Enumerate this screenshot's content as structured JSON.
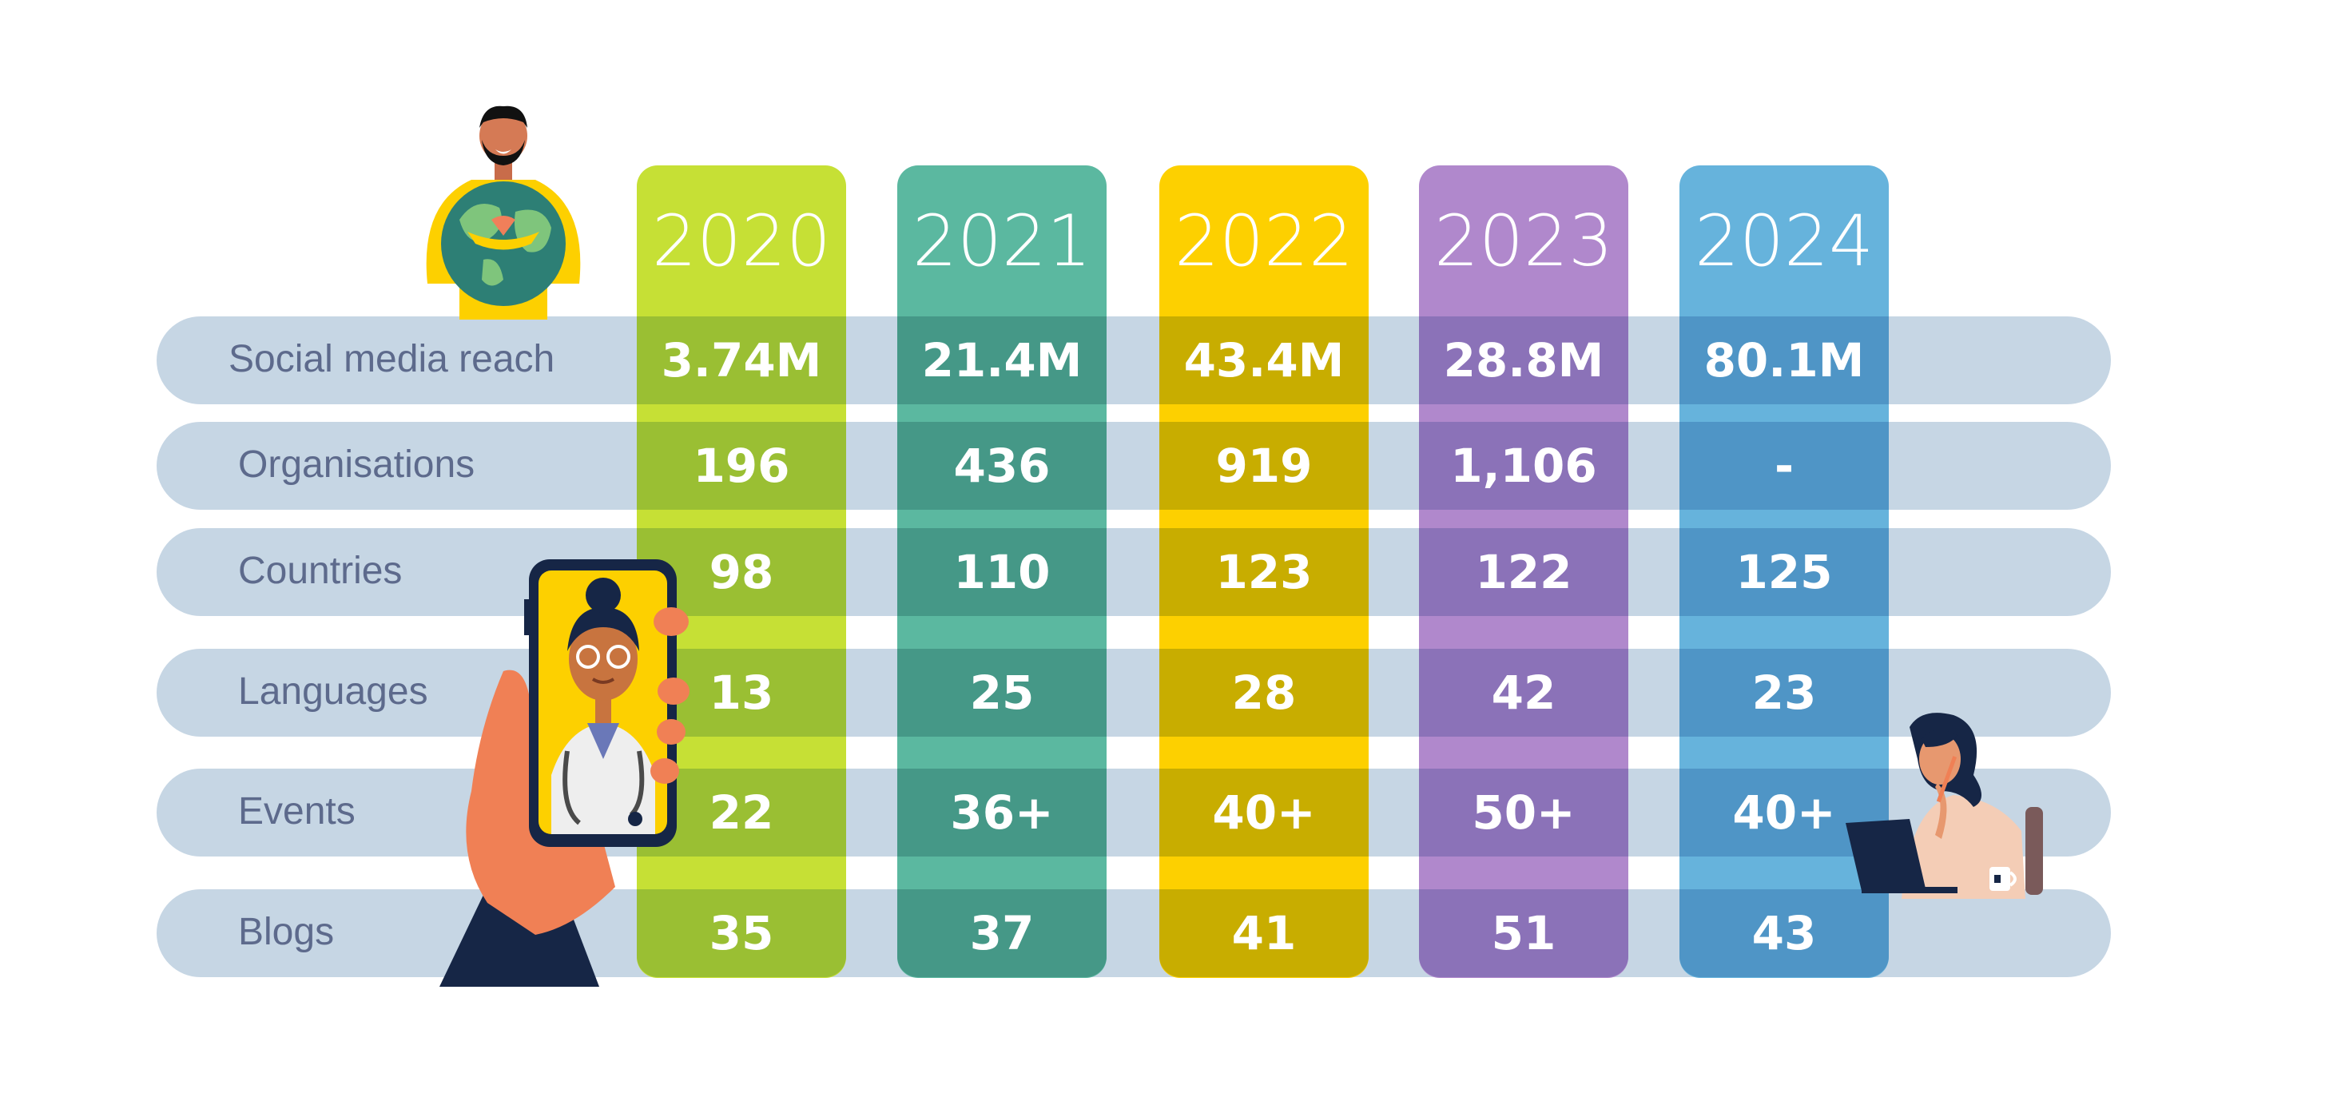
{
  "chart_data": {
    "type": "table",
    "title": "",
    "columns": [
      "2020",
      "2021",
      "2022",
      "2023",
      "2024"
    ],
    "rows": [
      {
        "label": "Social media reach",
        "values": [
          "3.74M",
          "21.4M",
          "43.4M",
          "28.8M",
          "80.1M"
        ]
      },
      {
        "label": "Organisations",
        "values": [
          "196",
          "436",
          "919",
          "1,106",
          "-"
        ]
      },
      {
        "label": "Countries",
        "values": [
          "98",
          "110",
          "123",
          "122",
          "125"
        ]
      },
      {
        "label": "Languages",
        "values": [
          "13",
          "25",
          "28",
          "42",
          "23"
        ]
      },
      {
        "label": "Events",
        "values": [
          "22",
          "36+",
          "40+",
          "50+",
          "40+"
        ]
      },
      {
        "label": "Blogs",
        "values": [
          "35",
          "37",
          "41",
          "51",
          "43"
        ]
      }
    ]
  },
  "colors": {
    "row_band": "#c6d6e4",
    "label_text": "#5d6a8c",
    "column_light": [
      "#c6e035",
      "#5bb8a0",
      "#fdd000",
      "#b088cc",
      "#66b3dc"
    ],
    "column_dark": [
      "#9abf33",
      "#459887",
      "#c8ad00",
      "#8b72b8",
      "#4f95c6"
    ]
  },
  "illustrations": [
    "man-hugging-globe-icon",
    "hand-holding-phone-doctor-icon",
    "woman-at-laptop-icon"
  ]
}
